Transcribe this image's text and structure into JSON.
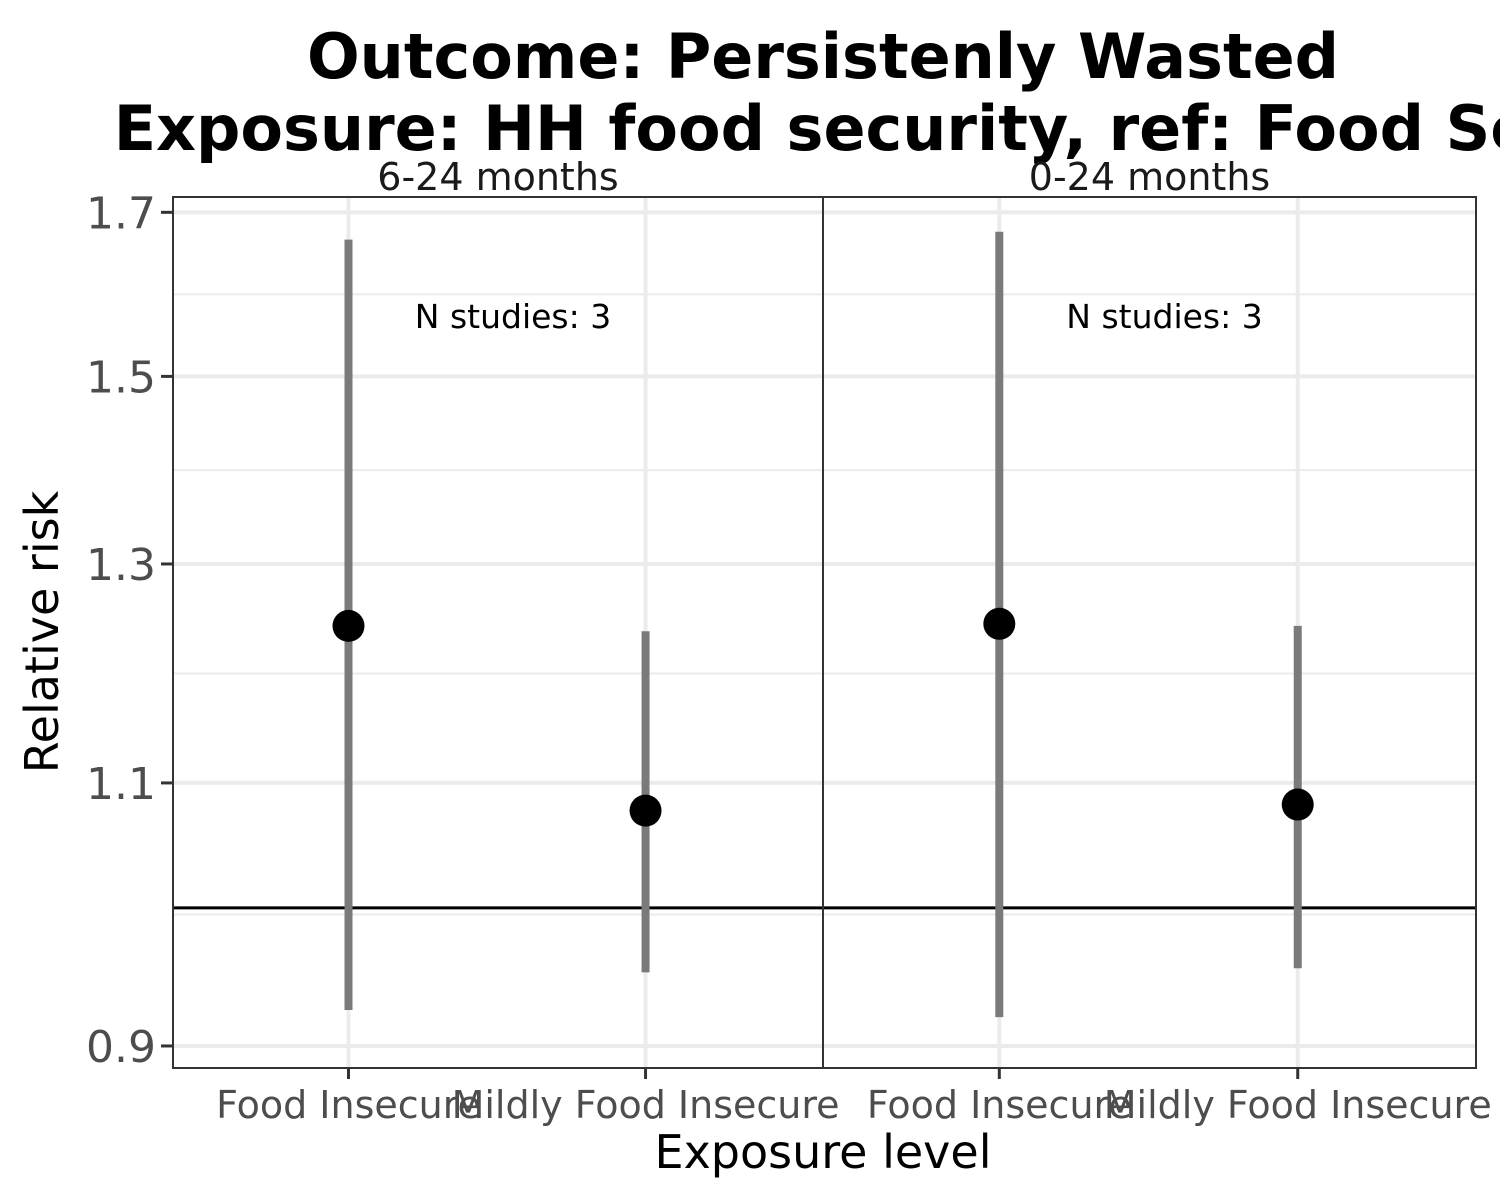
{
  "chart_data": {
    "type": "scatter",
    "title_line1": "Outcome: Persistenly Wasted",
    "title_line2": "Exposure: HH food security, ref: Food Se",
    "xlabel": "Exposure level",
    "ylabel": "Relative risk",
    "y_scale": "log",
    "ylim": [
      0.885,
      1.72
    ],
    "y_ticks": [
      "0.9",
      "1.1",
      "1.3",
      "1.5",
      "1.7"
    ],
    "reference_line": 1,
    "grid": true,
    "categories": [
      "Food Insecure",
      "Mildly Food Insecure"
    ],
    "facets": [
      {
        "label": "6-24 months",
        "annotation": "N studies: 3",
        "points": [
          {
            "category": "Food Insecure",
            "estimate": 1.24,
            "lower": 0.925,
            "upper": 1.665
          },
          {
            "category": "Mildly Food Insecure",
            "estimate": 1.077,
            "lower": 0.952,
            "upper": 1.235
          }
        ]
      },
      {
        "label": "0-24 months",
        "annotation": "N studies: 3",
        "points": [
          {
            "category": "Food Insecure",
            "estimate": 1.242,
            "lower": 0.92,
            "upper": 1.675
          },
          {
            "category": "Mildly Food Insecure",
            "estimate": 1.082,
            "lower": 0.955,
            "upper": 1.24
          }
        ]
      }
    ]
  }
}
